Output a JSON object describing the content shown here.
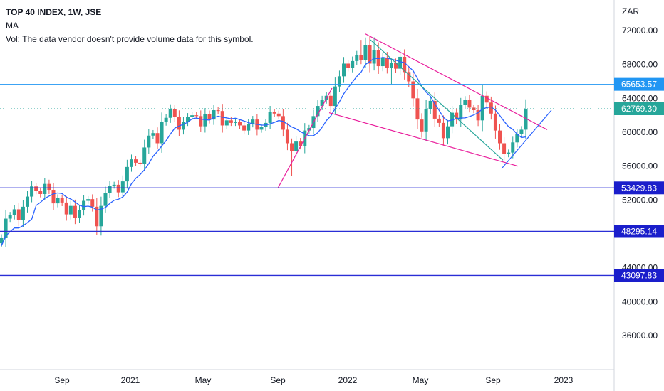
{
  "legend": {
    "symbol": "TOP 40 INDEX, 1W, JSE",
    "ma": "MA",
    "vol": "Vol: The data vendor doesn't provide volume data for this symbol."
  },
  "chart_data": {
    "type": "candlestick",
    "currency": "ZAR",
    "ylim": [
      32000,
      74000
    ],
    "y_ticks": [
      "72000.00",
      "68000.00",
      "64000.00",
      "60000.00",
      "56000.00",
      "52000.00",
      "44000.00",
      "40000.00",
      "36000.00"
    ],
    "x_ticks": [
      "Sep",
      "2021",
      "May",
      "Sep",
      "2022",
      "May",
      "Sep",
      "2023"
    ],
    "colors": {
      "up": "#26a69a",
      "down": "#ef5350",
      "ma": "#2962ff",
      "hline": "#2a2ed6",
      "level_light": "#2196f3",
      "trend_pink": "#e91e9c",
      "trend_teal": "#26a69a",
      "trend_blue": "#2962ff"
    },
    "closes": [
      47500,
      49800,
      50200,
      50900,
      49600,
      51200,
      52400,
      53600,
      53100,
      52700,
      53900,
      53200,
      51600,
      52200,
      51700,
      50300,
      51300,
      49900,
      50800,
      51900,
      52100,
      51200,
      48900,
      51300,
      52800,
      53700,
      53800,
      52900,
      54200,
      55900,
      56800,
      56400,
      56300,
      58200,
      59600,
      59900,
      58700,
      61200,
      61700,
      62700,
      61800,
      60300,
      61200,
      61800,
      62000,
      61900,
      60700,
      62100,
      61500,
      62600,
      62500,
      60800,
      61400,
      61100,
      61200,
      60800,
      60200,
      61000,
      61500,
      60300,
      60600,
      61100,
      62400,
      62200,
      61900,
      60300,
      58700,
      57800,
      58900,
      58400,
      60200,
      60500,
      61900,
      63100,
      63800,
      64300,
      63100,
      65400,
      66600,
      68100,
      67600,
      68400,
      69100,
      68500,
      70300,
      68100,
      69700,
      67800,
      68800,
      67600,
      68200,
      67500,
      68900,
      67100,
      66000,
      64000,
      61500,
      60100,
      62700,
      63700,
      61600,
      61100,
      59300,
      60700,
      62300,
      61500,
      63200,
      63800,
      62900,
      62600,
      61400,
      64300,
      63500,
      62200,
      60200,
      58700,
      57400,
      57600,
      58800,
      59800,
      60300,
      62769
    ],
    "ma_label_note": "",
    "levels": [
      {
        "value": 65653.57,
        "label": "65653.57",
        "style": "light"
      },
      {
        "value": 62769.3,
        "label": "62769.30",
        "style": "last"
      },
      {
        "value": 53429.83,
        "label": "53429.83",
        "style": "dark"
      },
      {
        "value": 48295.14,
        "label": "48295.14",
        "style": "dark"
      },
      {
        "value": 43097.83,
        "label": "43097.83",
        "style": "dark"
      }
    ]
  }
}
